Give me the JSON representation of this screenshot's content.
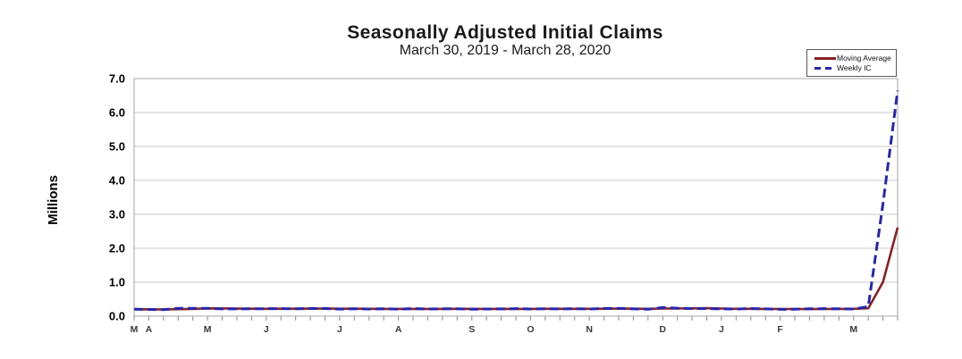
{
  "chart_data": {
    "type": "line",
    "title": "Seasonally Adjusted Initial Claims",
    "subtitle": "March 30, 2019 - March 28, 2020",
    "ylabel": "Millions",
    "xlabel": "",
    "units": "millions",
    "ylim": [
      0.0,
      7.0
    ],
    "y_tick_step": 1.0,
    "y_tick_labels": [
      "0.0",
      "1.0",
      "2.0",
      "3.0",
      "4.0",
      "5.0",
      "6.0",
      "7.0"
    ],
    "n_weeks": 53,
    "x_tick_labels": [
      {
        "label": "M",
        "week": 0
      },
      {
        "label": "A",
        "week": 1
      },
      {
        "label": "M",
        "week": 5
      },
      {
        "label": "J",
        "week": 9
      },
      {
        "label": "J",
        "week": 14
      },
      {
        "label": "A",
        "week": 18
      },
      {
        "label": "S",
        "week": 23
      },
      {
        "label": "O",
        "week": 27
      },
      {
        "label": "N",
        "week": 31
      },
      {
        "label": "D",
        "week": 36
      },
      {
        "label": "J",
        "week": 40
      },
      {
        "label": "F",
        "week": 44
      },
      {
        "label": "M",
        "week": 49
      }
    ],
    "grid": "horizontal",
    "legend_position": "top-right",
    "series": [
      {
        "name": "Moving Average",
        "style": "solid",
        "color": "#8B2020",
        "values": [
          0.204,
          0.201,
          0.198,
          0.206,
          0.213,
          0.23,
          0.225,
          0.221,
          0.218,
          0.215,
          0.218,
          0.219,
          0.221,
          0.223,
          0.219,
          0.219,
          0.215,
          0.213,
          0.213,
          0.214,
          0.214,
          0.214,
          0.216,
          0.213,
          0.212,
          0.212,
          0.212,
          0.213,
          0.215,
          0.215,
          0.215,
          0.215,
          0.218,
          0.221,
          0.219,
          0.217,
          0.224,
          0.226,
          0.229,
          0.234,
          0.224,
          0.217,
          0.217,
          0.214,
          0.211,
          0.21,
          0.208,
          0.21,
          0.214,
          0.216,
          0.231,
          1.003,
          2.612
        ]
      },
      {
        "name": "Weekly IC",
        "style": "dashed",
        "color": "#2626AE",
        "values": [
          0.204,
          0.197,
          0.193,
          0.23,
          0.23,
          0.228,
          0.212,
          0.212,
          0.218,
          0.219,
          0.222,
          0.217,
          0.227,
          0.224,
          0.209,
          0.216,
          0.211,
          0.215,
          0.209,
          0.22,
          0.211,
          0.216,
          0.217,
          0.206,
          0.21,
          0.213,
          0.22,
          0.21,
          0.218,
          0.213,
          0.218,
          0.211,
          0.225,
          0.228,
          0.213,
          0.203,
          0.252,
          0.235,
          0.224,
          0.223,
          0.214,
          0.207,
          0.223,
          0.212,
          0.201,
          0.204,
          0.215,
          0.22,
          0.217,
          0.211,
          0.282,
          3.307,
          6.648
        ]
      }
    ],
    "colors": {
      "grid": "#C9C9C9",
      "plot_border": "#A6A6A6",
      "axis_tick": "#8C8C8C",
      "y_tick_label": "#000000",
      "x_tick_label": "#3A3A3A"
    }
  }
}
